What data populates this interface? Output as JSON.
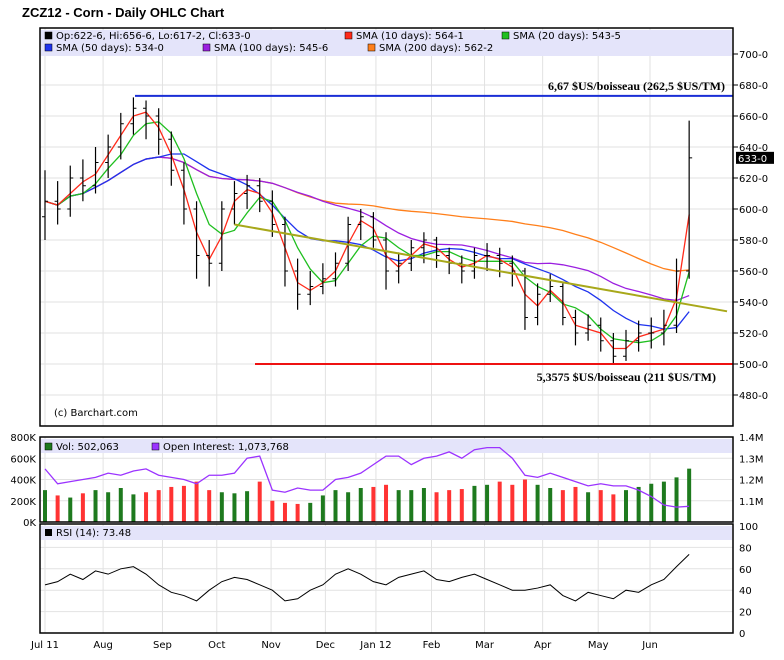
{
  "title": "ZCZ12 - Corn - Daily OHLC Chart",
  "credit": "(c) Barchart.com",
  "colors": {
    "price": "#000000",
    "sma10": "#ff2a1a",
    "sma20": "#1fbf1f",
    "sma50": "#1f33ee",
    "sma100": "#9b1fe0",
    "sma200": "#ff7f1a",
    "resistance": "#1a2ed6",
    "support": "#ee1111",
    "trend": "#a8a81a",
    "vol_up": "#1e7a1e",
    "vol_down": "#ff3333",
    "oi": "#9b33ff",
    "rsi": "#000000",
    "legend_bg": "#e4e4fa"
  },
  "legend": {
    "ohlc": "Op:622-6, Hi:656-6, Lo:617-2, Cl:633-0",
    "sma10": "SMA (10 days): 564-1",
    "sma20": "SMA (20 days): 543-5",
    "sma50": "SMA (50 days): 534-0",
    "sma100": "SMA (100 days): 545-6",
    "sma200": "SMA (200 days): 562-2",
    "vol": "Vol: 502,063",
    "oi": "Open Interest: 1,073,768",
    "rsi": "RSI (14): 73.48"
  },
  "annotations": {
    "resistance": {
      "label": "6,67 $US/boisseau (262,5 $US/TM)",
      "price": 673
    },
    "support": {
      "label": "5,3575 $US/boisseau (211 $US/TM)",
      "price": 500
    },
    "trendline": {
      "from": {
        "week": 15,
        "price": 590
      },
      "to": {
        "week": 54,
        "price": 534
      }
    },
    "last_price_label": "633-0",
    "last_price": 633
  },
  "chart_data": [
    {
      "type": "ohlc",
      "title": "ZCZ12 - Corn - Daily OHLC Chart",
      "ylim": [
        470,
        710
      ],
      "y_ticks": [
        "480-0",
        "500-0",
        "520-0",
        "540-0",
        "560-0",
        "580-0",
        "600-0",
        "620-0",
        "640-0",
        "660-0",
        "680-0",
        "700-0"
      ],
      "x_ticks": [
        {
          "label": "Jul 11",
          "week": 0
        },
        {
          "label": "Aug",
          "week": 4.6
        },
        {
          "label": "Sep",
          "week": 9.3
        },
        {
          "label": "Oct",
          "week": 13.6
        },
        {
          "label": "Nov",
          "week": 17.9
        },
        {
          "label": "Dec",
          "week": 22.2
        },
        {
          "label": "Jan 12",
          "week": 26.2
        },
        {
          "label": "Feb",
          "week": 30.6
        },
        {
          "label": "Mar",
          "week": 34.8
        },
        {
          "label": "Apr",
          "week": 39.4
        },
        {
          "label": "May",
          "week": 43.8
        },
        {
          "label": "Jun",
          "week": 47.9
        }
      ],
      "grid": true,
      "ohlc": [
        [
          595,
          625,
          580,
          605
        ],
        [
          605,
          618,
          590,
          600
        ],
        [
          600,
          628,
          595,
          620
        ],
        [
          620,
          632,
          605,
          615
        ],
        [
          615,
          640,
          610,
          630
        ],
        [
          630,
          648,
          620,
          640
        ],
        [
          640,
          662,
          632,
          655
        ],
        [
          655,
          672,
          648,
          665
        ],
        [
          665,
          670,
          645,
          660
        ],
        [
          660,
          665,
          635,
          645
        ],
        [
          645,
          650,
          615,
          625
        ],
        [
          625,
          630,
          590,
          600
        ],
        [
          600,
          605,
          555,
          570
        ],
        [
          570,
          580,
          550,
          565
        ],
        [
          565,
          605,
          560,
          600
        ],
        [
          600,
          618,
          590,
          610
        ],
        [
          610,
          622,
          600,
          615
        ],
        [
          615,
          620,
          598,
          605
        ],
        [
          605,
          612,
          582,
          590
        ],
        [
          590,
          595,
          550,
          560
        ],
        [
          560,
          568,
          535,
          545
        ],
        [
          545,
          560,
          538,
          550
        ],
        [
          550,
          565,
          545,
          555
        ],
        [
          555,
          572,
          550,
          565
        ],
        [
          565,
          595,
          560,
          590
        ],
        [
          590,
          600,
          580,
          595
        ],
        [
          595,
          598,
          575,
          580
        ],
        [
          580,
          585,
          548,
          560
        ],
        [
          560,
          572,
          552,
          565
        ],
        [
          565,
          580,
          560,
          575
        ],
        [
          575,
          585,
          565,
          580
        ],
        [
          580,
          582,
          562,
          570
        ],
        [
          570,
          575,
          558,
          565
        ],
        [
          565,
          570,
          552,
          560
        ],
        [
          560,
          575,
          555,
          570
        ],
        [
          570,
          578,
          560,
          570
        ],
        [
          570,
          575,
          556,
          565
        ],
        [
          565,
          570,
          550,
          560
        ],
        [
          560,
          562,
          522,
          530
        ],
        [
          530,
          552,
          525,
          545
        ],
        [
          545,
          558,
          540,
          550
        ],
        [
          550,
          552,
          525,
          530
        ],
        [
          530,
          535,
          512,
          520
        ],
        [
          520,
          532,
          515,
          525
        ],
        [
          525,
          530,
          508,
          515
        ],
        [
          515,
          520,
          500,
          505
        ],
        [
          505,
          522,
          502,
          515
        ],
        [
          515,
          528,
          508,
          520
        ],
        [
          520,
          530,
          510,
          520
        ],
        [
          520,
          535,
          512,
          525
        ],
        [
          525,
          568,
          520,
          560
        ],
        [
          560,
          657,
          555,
          633
        ]
      ],
      "sma_periods_days": [
        10,
        20,
        50,
        100,
        200
      ]
    },
    {
      "type": "bar",
      "ylim_volume": [
        0,
        800000
      ],
      "y_ticks_left": [
        "0K",
        "200K",
        "400K",
        "600K",
        "800K"
      ],
      "ylim_oi": [
        1000000,
        1400000
      ],
      "y_ticks_right": [
        "1.1M",
        "1.2M",
        "1.3M",
        "1.4M"
      ],
      "volume": [
        300000,
        250000,
        230000,
        270000,
        300000,
        280000,
        320000,
        260000,
        280000,
        300000,
        330000,
        340000,
        380000,
        300000,
        280000,
        270000,
        290000,
        380000,
        200000,
        180000,
        170000,
        180000,
        250000,
        300000,
        280000,
        320000,
        330000,
        350000,
        300000,
        300000,
        320000,
        280000,
        300000,
        310000,
        340000,
        350000,
        380000,
        350000,
        400000,
        350000,
        320000,
        300000,
        330000,
        280000,
        300000,
        260000,
        300000,
        330000,
        360000,
        380000,
        420000,
        502063
      ],
      "open_interest": [
        1250000,
        1180000,
        1190000,
        1200000,
        1210000,
        1230000,
        1220000,
        1240000,
        1250000,
        1220000,
        1210000,
        1200000,
        1180000,
        1220000,
        1220000,
        1230000,
        1300000,
        1310000,
        1150000,
        1140000,
        1160000,
        1150000,
        1150000,
        1200000,
        1210000,
        1230000,
        1270000,
        1310000,
        1310000,
        1270000,
        1300000,
        1310000,
        1330000,
        1300000,
        1340000,
        1350000,
        1350000,
        1300000,
        1220000,
        1210000,
        1230000,
        1210000,
        1190000,
        1170000,
        1180000,
        1170000,
        1170000,
        1150000,
        1120000,
        1080000,
        1070000,
        1073768
      ]
    },
    {
      "type": "line",
      "ylim": [
        0,
        100
      ],
      "y_ticks": [
        "0",
        "20",
        "40",
        "60",
        "80",
        "100"
      ],
      "rsi": [
        45,
        48,
        55,
        50,
        58,
        55,
        60,
        62,
        55,
        45,
        38,
        35,
        30,
        40,
        48,
        52,
        50,
        45,
        40,
        30,
        32,
        40,
        45,
        55,
        60,
        55,
        48,
        45,
        52,
        55,
        58,
        50,
        48,
        52,
        55,
        50,
        45,
        40,
        40,
        42,
        45,
        35,
        30,
        38,
        35,
        32,
        40,
        38,
        45,
        50,
        62,
        73.48
      ]
    }
  ]
}
